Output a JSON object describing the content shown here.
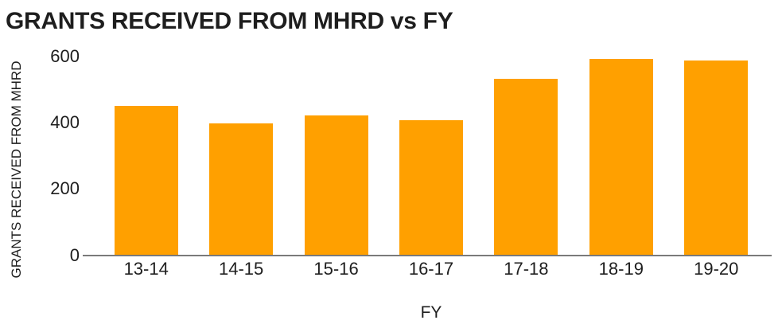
{
  "page": {
    "background_color": "#ffffff",
    "text_color": "#1e1e1e"
  },
  "chart_data": {
    "type": "bar",
    "title": "GRANTS RECEIVED FROM MHRD vs FY",
    "xlabel": "FY",
    "ylabel": "GRANTS RECEIVED FROM MHRD",
    "categories": [
      "13-14",
      "14-15",
      "15-16",
      "16-17",
      "17-18",
      "18-19",
      "19-20"
    ],
    "values": [
      450,
      395,
      420,
      405,
      530,
      590,
      585
    ],
    "ylim": [
      0,
      600
    ],
    "yticks": [
      0,
      200,
      400,
      600
    ],
    "bar_color": "#FFA000",
    "axis_line_color": "#7a7a7a",
    "grid": false,
    "legend": "none"
  }
}
